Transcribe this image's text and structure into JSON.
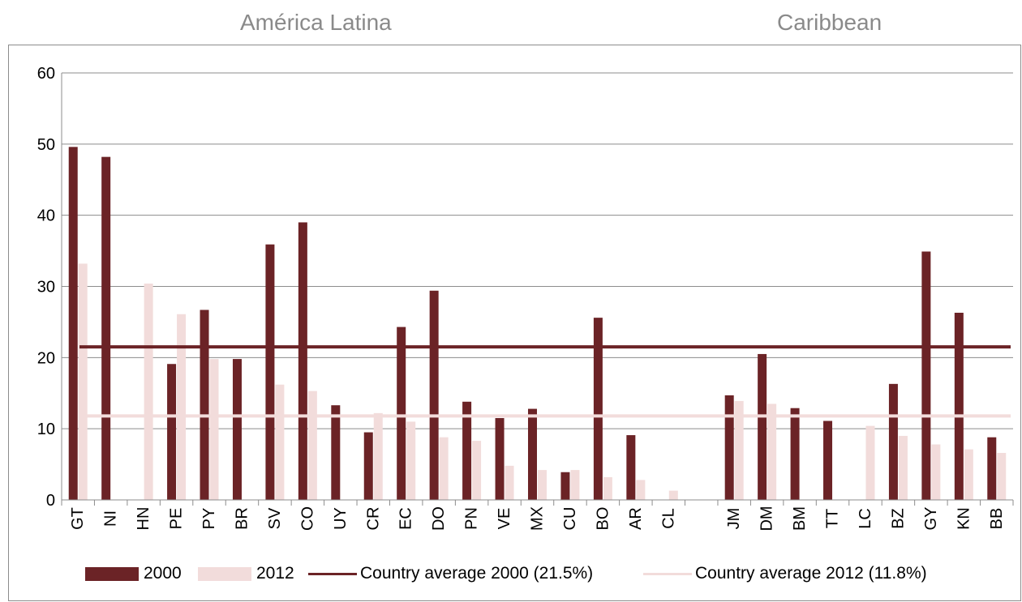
{
  "groups": {
    "latin": "América Latina",
    "caribbean": "Caribbean"
  },
  "legend": {
    "s2000": "2000",
    "s2012": "2012",
    "avg2000": "Country average 2000 (21.5%)",
    "avg2012": "Country average 2012 (11.8%)"
  },
  "colors": {
    "s2000": "#6b2326",
    "s2012": "#f2dcdb",
    "avg2000": "#6b2326",
    "avg2012": "#f2dcdb"
  },
  "chart_data": {
    "type": "bar",
    "title": "",
    "xlabel": "",
    "ylabel": "",
    "ylim": [
      0,
      60
    ],
    "yticks": [
      0,
      10,
      20,
      30,
      40,
      50,
      60
    ],
    "grid": true,
    "legend_position": "bottom",
    "categories": [
      "GT",
      "NI",
      "HN",
      "PE",
      "PY",
      "BR",
      "SV",
      "CO",
      "UY",
      "CR",
      "EC",
      "DO",
      "PN",
      "VE",
      "MX",
      "CU",
      "BO",
      "AR",
      "CL",
      "",
      "JM",
      "DM",
      "BM",
      "TT",
      "LC",
      "BZ",
      "GY",
      "KN",
      "BB"
    ],
    "series": [
      {
        "name": "2000",
        "values": [
          49.6,
          48.2,
          null,
          19.1,
          26.7,
          19.8,
          35.9,
          39.0,
          13.3,
          9.5,
          24.3,
          29.4,
          13.8,
          11.5,
          12.8,
          3.9,
          25.6,
          9.1,
          null,
          null,
          14.7,
          20.5,
          12.9,
          11.1,
          null,
          16.3,
          34.9,
          26.3,
          8.8
        ]
      },
      {
        "name": "2012",
        "values": [
          33.2,
          null,
          30.4,
          26.1,
          19.8,
          null,
          16.2,
          15.3,
          null,
          12.2,
          11.0,
          8.8,
          8.3,
          4.8,
          4.2,
          4.2,
          3.2,
          2.8,
          1.3,
          null,
          13.9,
          13.5,
          null,
          null,
          10.4,
          9.0,
          7.8,
          7.1,
          6.6
        ]
      }
    ],
    "reference_lines": [
      {
        "name": "Country average 2000 (21.5%)",
        "value": 21.5
      },
      {
        "name": "Country average 2012 (11.8%)",
        "value": 11.8
      }
    ]
  }
}
